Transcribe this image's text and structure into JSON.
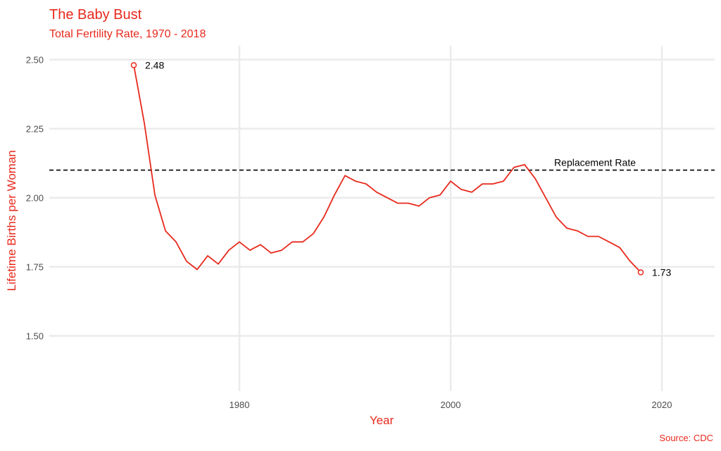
{
  "chart_data": {
    "type": "line",
    "title": "The Baby Bust",
    "subtitle": "Total Fertility Rate, 1970 - 2018",
    "xlabel": "Year",
    "ylabel": "Lifetime Births per Woman",
    "caption": "Source: CDC",
    "xlim": [
      1962,
      2025
    ],
    "ylim": [
      1.3,
      2.55
    ],
    "x_ticks": [
      1980,
      2000,
      2020
    ],
    "x_tick_labels": [
      "1980",
      "2000",
      "2020"
    ],
    "y_ticks": [
      1.5,
      1.75,
      2.0,
      2.25,
      2.5
    ],
    "y_tick_labels": [
      "1.50",
      "1.75",
      "2.00",
      "2.25",
      "2.50"
    ],
    "grid": true,
    "reference_line": {
      "value": 2.1,
      "label": "Replacement Rate"
    },
    "series": [
      {
        "color": "#e8291c",
        "x": [
          1970,
          1971,
          1972,
          1973,
          1974,
          1975,
          1976,
          1977,
          1978,
          1979,
          1980,
          1981,
          1982,
          1983,
          1984,
          1985,
          1986,
          1987,
          1988,
          1989,
          1990,
          1991,
          1992,
          1993,
          1994,
          1995,
          1996,
          1997,
          1998,
          1999,
          2000,
          2001,
          2002,
          2003,
          2004,
          2005,
          2006,
          2007,
          2008,
          2009,
          2010,
          2011,
          2012,
          2013,
          2014,
          2015,
          2016,
          2017,
          2018
        ],
        "values": [
          2.48,
          2.27,
          2.01,
          1.88,
          1.84,
          1.77,
          1.74,
          1.79,
          1.76,
          1.81,
          1.84,
          1.81,
          1.83,
          1.8,
          1.81,
          1.84,
          1.84,
          1.87,
          1.93,
          2.01,
          2.08,
          2.06,
          2.05,
          2.02,
          2.0,
          1.98,
          1.98,
          1.97,
          2.0,
          2.01,
          2.06,
          2.03,
          2.02,
          2.05,
          2.05,
          2.06,
          2.11,
          2.12,
          2.07,
          2.0,
          1.93,
          1.89,
          1.88,
          1.86,
          1.86,
          1.84,
          1.82,
          1.77,
          1.73
        ]
      }
    ],
    "end_labels": {
      "start": "2.48",
      "end": "1.73"
    },
    "colors": {
      "accent": "#e8291c",
      "grid": "#ebebeb",
      "text": "#4d4d4d"
    }
  }
}
